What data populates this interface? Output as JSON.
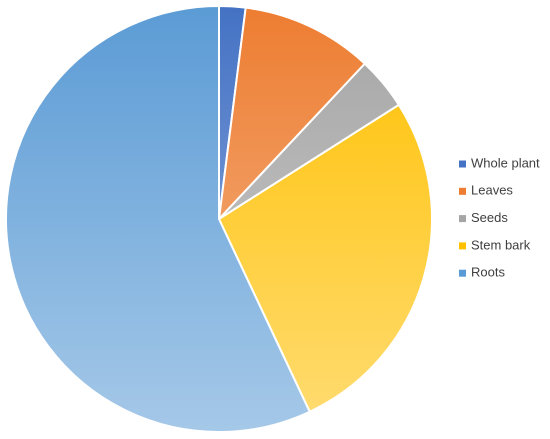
{
  "chart_data": {
    "type": "pie",
    "categories": [
      "Whole plant",
      "Leaves",
      "Seeds",
      "Stem bark",
      "Roots"
    ],
    "values": [
      2,
      10,
      4,
      27,
      57
    ],
    "colors": [
      "#4472c4",
      "#ed7d31",
      "#a5a5a5",
      "#ffc000",
      "#5b9bd5"
    ],
    "legend": "right"
  }
}
